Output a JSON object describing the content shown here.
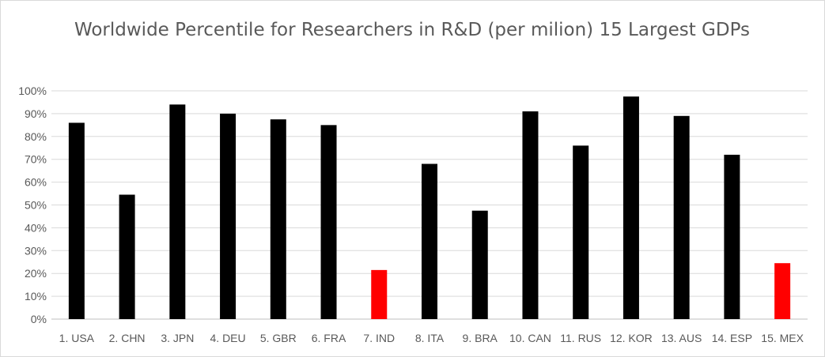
{
  "chart_data": {
    "type": "bar",
    "title": "Worldwide Percentile for Researchers in R&D (per milion) 15 Largest GDPs",
    "xlabel": "",
    "ylabel": "",
    "ylim": [
      0,
      100
    ],
    "yticks": [
      "0%",
      "10%",
      "20%",
      "30%",
      "40%",
      "50%",
      "60%",
      "70%",
      "80%",
      "90%",
      "100%"
    ],
    "categories": [
      "1. USA",
      "2. CHN",
      "3. JPN",
      "4. DEU",
      "5. GBR",
      "6. FRA",
      "7. IND",
      "8. ITA",
      "9. BRA",
      "10. CAN",
      "11. RUS",
      "12. KOR",
      "13. AUS",
      "14. ESP",
      "15. MEX"
    ],
    "values": [
      86,
      54.5,
      94,
      90,
      87.5,
      85,
      21.5,
      68,
      47.5,
      91,
      76,
      97.5,
      89,
      72,
      24.5
    ],
    "bar_colors": [
      "#000000",
      "#000000",
      "#000000",
      "#000000",
      "#000000",
      "#000000",
      "#ff0000",
      "#000000",
      "#000000",
      "#000000",
      "#000000",
      "#000000",
      "#000000",
      "#000000",
      "#ff0000"
    ],
    "grid": true,
    "legend": "none"
  }
}
